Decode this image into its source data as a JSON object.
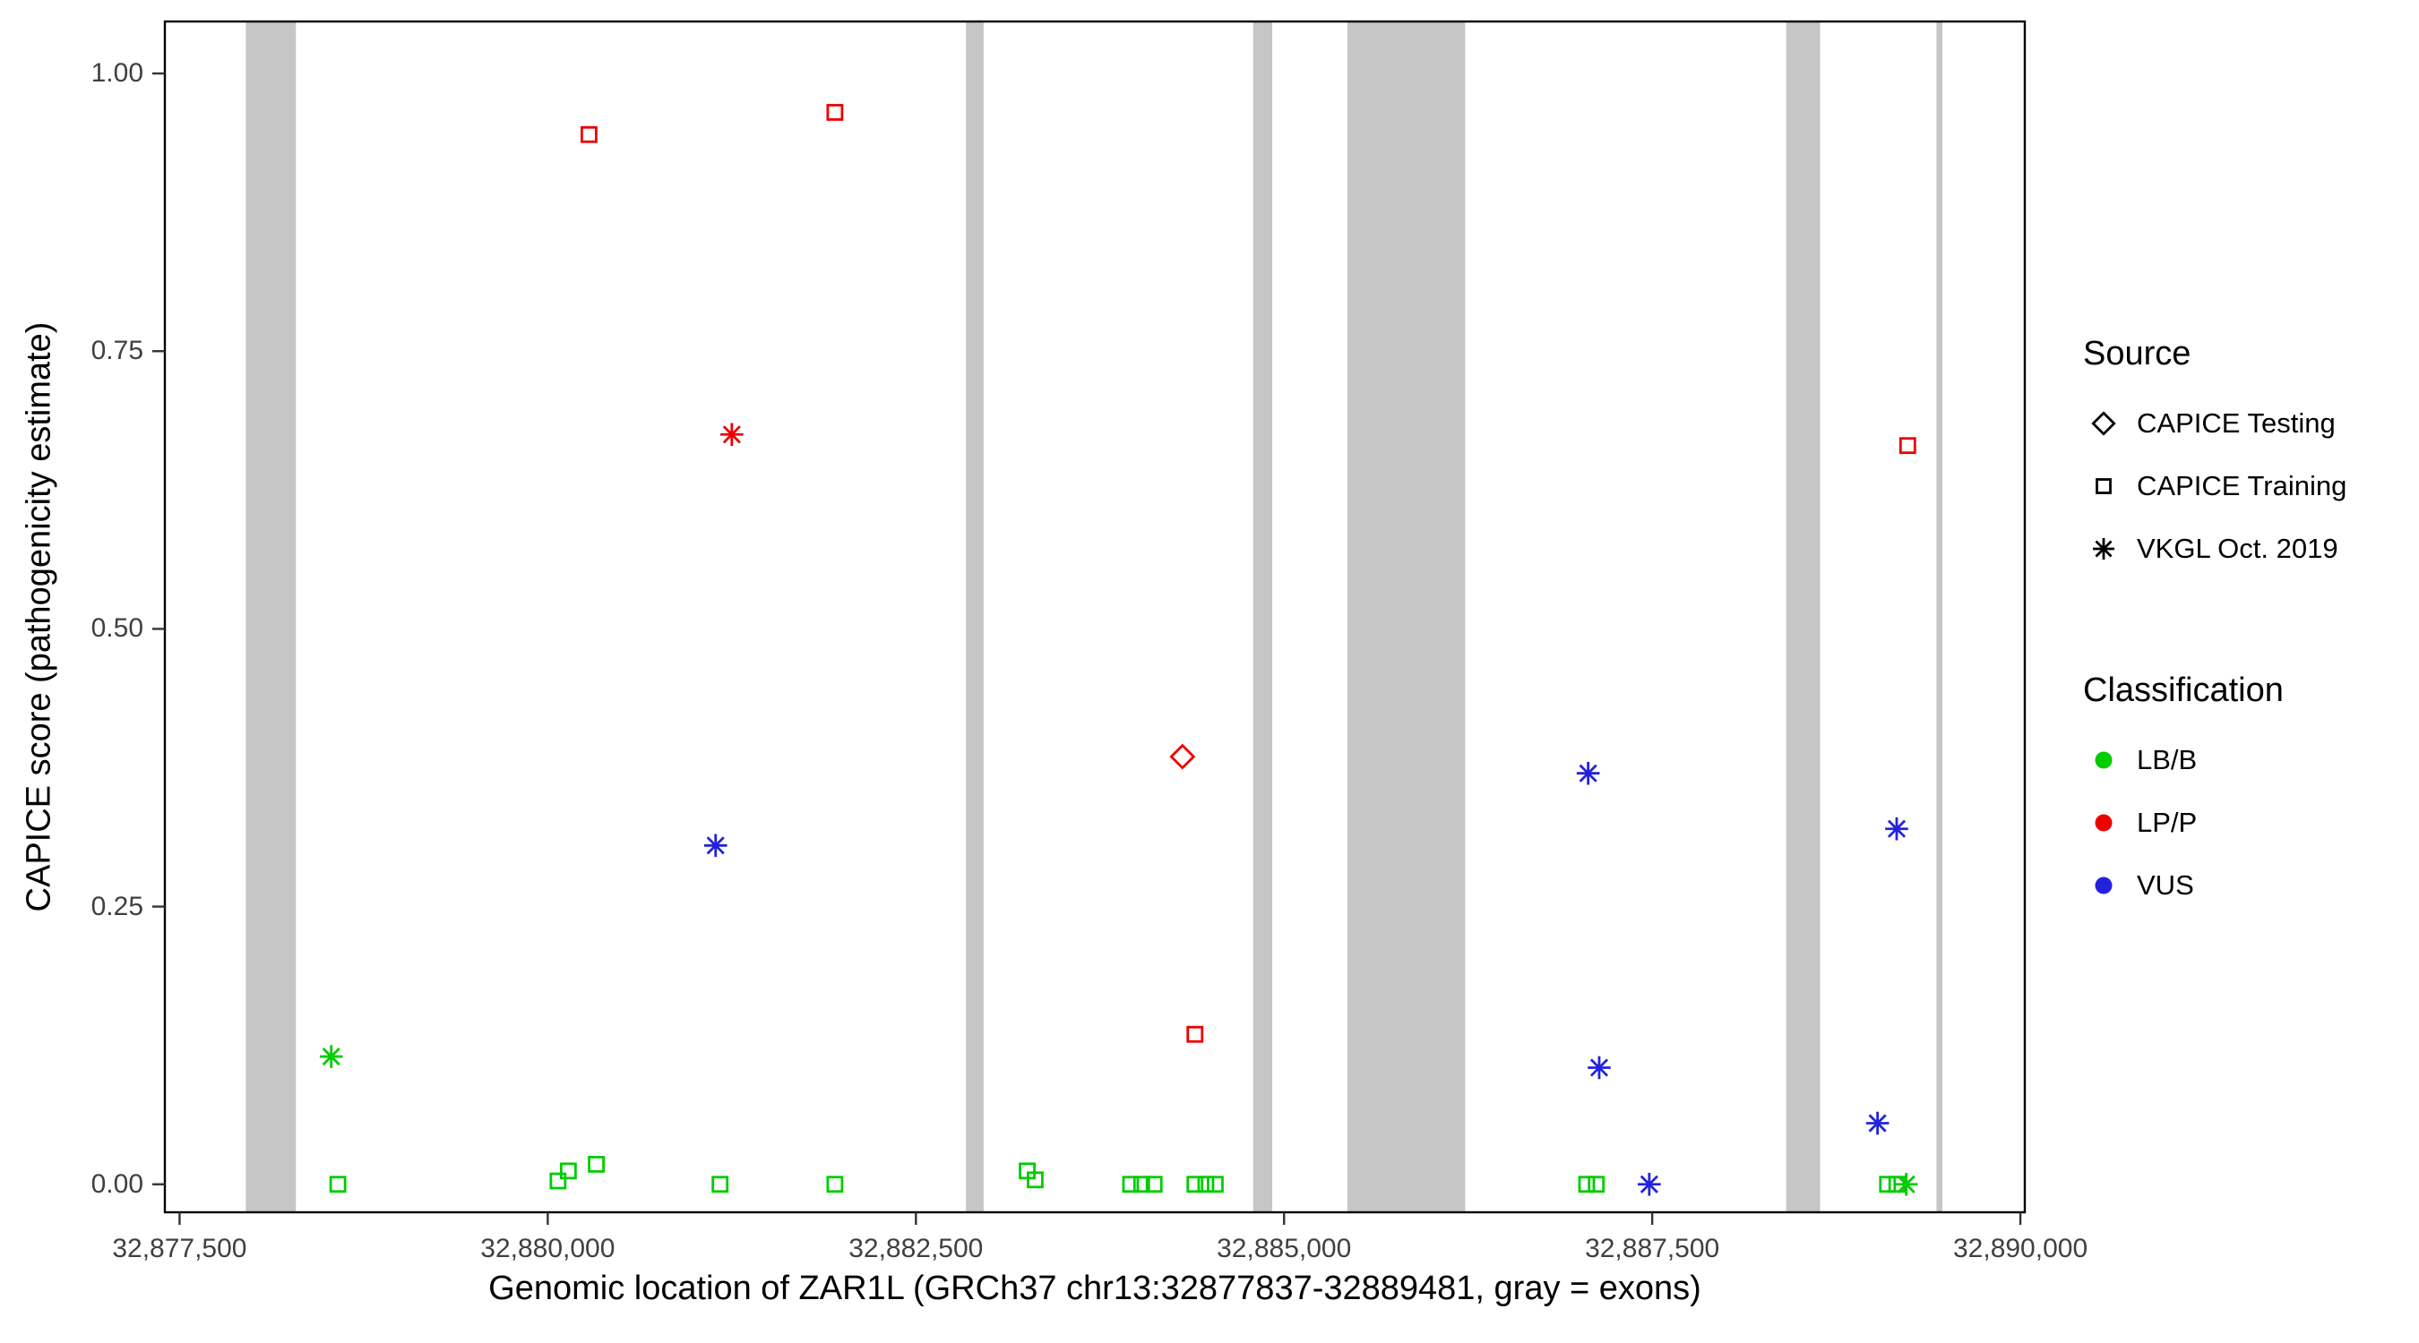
{
  "colors": {
    "exon_band": "#C6C6C6",
    "axis_text": "#404040",
    "panel_border": "#000000"
  },
  "legend": {
    "source": {
      "title": "Source",
      "items": [
        {
          "label": "CAPICE Testing",
          "shape": "diamond"
        },
        {
          "label": "CAPICE Training",
          "shape": "square"
        },
        {
          "label": "VKGL Oct. 2019",
          "shape": "asterisk"
        }
      ]
    },
    "classification": {
      "title": "Classification",
      "items": [
        {
          "label": "LB/B",
          "color": "#00CC00"
        },
        {
          "label": "LP/P",
          "color": "#EE0000"
        },
        {
          "label": "VUS",
          "color": "#2222DD"
        }
      ]
    },
    "shape_by_source": {
      "CAPICE Testing": "diamond",
      "CAPICE Training": "square",
      "VKGL Oct. 2019": "asterisk"
    },
    "color_by_classification": {
      "LB/B": "#00CC00",
      "LP/P": "#EE0000",
      "VUS": "#2222DD"
    }
  },
  "chart_data": {
    "type": "scatter",
    "title": "",
    "xlabel": "Genomic location of ZAR1L (GRCh37 chr13:32877837-32889481, gray = exons)",
    "ylabel": "CAPICE score (pathogenicity estimate)",
    "xlim": [
      32877400,
      32890030
    ],
    "ylim": [
      -0.0252,
      1.0468
    ],
    "x_ticks": [
      32877500,
      32880000,
      32882500,
      32885000,
      32887500,
      32890000
    ],
    "x_tick_labels": [
      "32,877,500",
      "32,880,000",
      "32,882,500",
      "32,885,000",
      "32,887,500",
      "32,890,000"
    ],
    "y_ticks": [
      0.0,
      0.25,
      0.5,
      0.75,
      1.0
    ],
    "y_tick_labels": [
      "0.00",
      "0.25",
      "0.50",
      "0.75",
      "1.00"
    ],
    "grid": false,
    "legend_position": "right",
    "exon_bands": [
      [
        32877950,
        32878290
      ],
      [
        32882840,
        32882960
      ],
      [
        32884790,
        32884920
      ],
      [
        32885430,
        32886230
      ],
      [
        32888410,
        32888640
      ],
      [
        32889430,
        32889470
      ]
    ],
    "points": [
      {
        "x": 32880280,
        "y": 0.945,
        "source": "CAPICE Training",
        "classification": "LP/P"
      },
      {
        "x": 32881950,
        "y": 0.965,
        "source": "CAPICE Training",
        "classification": "LP/P"
      },
      {
        "x": 32884395,
        "y": 0.135,
        "source": "CAPICE Training",
        "classification": "LP/P"
      },
      {
        "x": 32889235,
        "y": 0.665,
        "source": "CAPICE Training",
        "classification": "LP/P"
      },
      {
        "x": 32881250,
        "y": 0.675,
        "source": "VKGL Oct. 2019",
        "classification": "LP/P"
      },
      {
        "x": 32884310,
        "y": 0.385,
        "source": "CAPICE Testing",
        "classification": "LP/P"
      },
      {
        "x": 32881140,
        "y": 0.305,
        "source": "VKGL Oct. 2019",
        "classification": "VUS"
      },
      {
        "x": 32887065,
        "y": 0.37,
        "source": "VKGL Oct. 2019",
        "classification": "VUS"
      },
      {
        "x": 32887140,
        "y": 0.105,
        "source": "VKGL Oct. 2019",
        "classification": "VUS"
      },
      {
        "x": 32887480,
        "y": 0.0,
        "source": "VKGL Oct. 2019",
        "classification": "VUS"
      },
      {
        "x": 32889030,
        "y": 0.055,
        "source": "VKGL Oct. 2019",
        "classification": "VUS"
      },
      {
        "x": 32889160,
        "y": 0.32,
        "source": "VKGL Oct. 2019",
        "classification": "VUS"
      },
      {
        "x": 32878530,
        "y": 0.115,
        "source": "VKGL Oct. 2019",
        "classification": "LB/B"
      },
      {
        "x": 32889225,
        "y": 0.0,
        "source": "VKGL Oct. 2019",
        "classification": "LB/B"
      },
      {
        "x": 32878575,
        "y": 0.0,
        "source": "CAPICE Training",
        "classification": "LB/B"
      },
      {
        "x": 32880070,
        "y": 0.003,
        "source": "CAPICE Training",
        "classification": "LB/B"
      },
      {
        "x": 32880140,
        "y": 0.012,
        "source": "CAPICE Training",
        "classification": "LB/B"
      },
      {
        "x": 32880330,
        "y": 0.018,
        "source": "CAPICE Training",
        "classification": "LB/B"
      },
      {
        "x": 32881170,
        "y": 0.0,
        "source": "CAPICE Training",
        "classification": "LB/B"
      },
      {
        "x": 32881950,
        "y": 0.0,
        "source": "CAPICE Training",
        "classification": "LB/B"
      },
      {
        "x": 32883256,
        "y": 0.012,
        "source": "CAPICE Training",
        "classification": "LB/B"
      },
      {
        "x": 32883310,
        "y": 0.004,
        "source": "CAPICE Training",
        "classification": "LB/B"
      },
      {
        "x": 32883958,
        "y": 0.0,
        "source": "CAPICE Training",
        "classification": "LB/B"
      },
      {
        "x": 32884033,
        "y": 0.0,
        "source": "CAPICE Training",
        "classification": "LB/B"
      },
      {
        "x": 32884118,
        "y": 0.0,
        "source": "CAPICE Training",
        "classification": "LB/B"
      },
      {
        "x": 32884395,
        "y": 0.0,
        "source": "CAPICE Training",
        "classification": "LB/B"
      },
      {
        "x": 32884469,
        "y": 0.0,
        "source": "CAPICE Training",
        "classification": "LB/B"
      },
      {
        "x": 32884533,
        "y": 0.0,
        "source": "CAPICE Training",
        "classification": "LB/B"
      },
      {
        "x": 32887055,
        "y": 0.0,
        "source": "CAPICE Training",
        "classification": "LB/B"
      },
      {
        "x": 32887120,
        "y": 0.0,
        "source": "CAPICE Training",
        "classification": "LB/B"
      },
      {
        "x": 32889098,
        "y": 0.0,
        "source": "CAPICE Training",
        "classification": "LB/B"
      },
      {
        "x": 32889161,
        "y": 0.0,
        "source": "CAPICE Training",
        "classification": "LB/B"
      }
    ]
  }
}
